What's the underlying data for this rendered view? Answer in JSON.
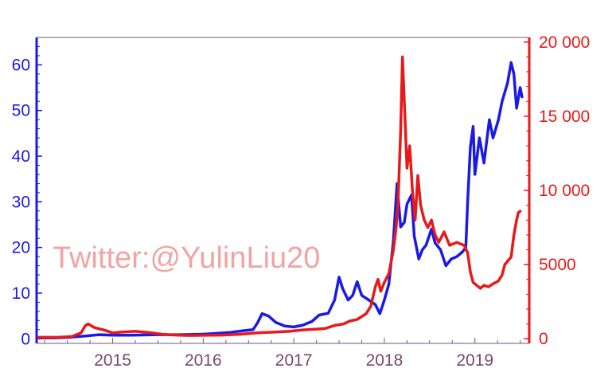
{
  "watermark": "Twitter:@YulinLiu20",
  "chart_data": {
    "type": "line",
    "x_ticks": [
      "2015",
      "2016",
      "2017",
      "2018",
      "2019"
    ],
    "x_range": [
      2014.16,
      2019.6
    ],
    "y_left": {
      "range": [
        -1,
        66
      ],
      "ticks": [
        0,
        10,
        20,
        30,
        40,
        50,
        60
      ],
      "tick_labels": [
        "0",
        "10",
        "20",
        "30",
        "40",
        "50",
        "60"
      ],
      "color": "#1a1ae6"
    },
    "y_right": {
      "range": [
        -310,
        20310
      ],
      "ticks": [
        0,
        5000,
        10000,
        15000,
        20000
      ],
      "tick_labels": [
        "0",
        "5000",
        "10 000",
        "15 000",
        "20 000"
      ],
      "color": "#e61a1a"
    },
    "series": [
      {
        "axis": "left",
        "color": "#1a1ae6",
        "points": [
          [
            2014.18,
            0.2
          ],
          [
            2014.35,
            0.2
          ],
          [
            2014.5,
            0.3
          ],
          [
            2014.7,
            0.6
          ],
          [
            2014.85,
            0.9
          ],
          [
            2015.0,
            0.8
          ],
          [
            2015.2,
            0.8
          ],
          [
            2015.5,
            0.9
          ],
          [
            2015.75,
            0.9
          ],
          [
            2016.0,
            1.0
          ],
          [
            2016.15,
            1.2
          ],
          [
            2016.3,
            1.4
          ],
          [
            2016.45,
            1.8
          ],
          [
            2016.55,
            2.0
          ],
          [
            2016.6,
            3.5
          ],
          [
            2016.65,
            5.5
          ],
          [
            2016.72,
            5.0
          ],
          [
            2016.8,
            3.6
          ],
          [
            2016.9,
            2.8
          ],
          [
            2017.0,
            2.6
          ],
          [
            2017.1,
            3.0
          ],
          [
            2017.2,
            3.8
          ],
          [
            2017.28,
            5.2
          ],
          [
            2017.38,
            5.6
          ],
          [
            2017.45,
            8.5
          ],
          [
            2017.5,
            13.5
          ],
          [
            2017.54,
            11.0
          ],
          [
            2017.6,
            8.5
          ],
          [
            2017.65,
            9.5
          ],
          [
            2017.7,
            12.5
          ],
          [
            2017.75,
            9.5
          ],
          [
            2017.82,
            8.6
          ],
          [
            2017.9,
            7.5
          ],
          [
            2017.95,
            5.5
          ],
          [
            2018.0,
            8.5
          ],
          [
            2018.05,
            12.0
          ],
          [
            2018.1,
            21.5
          ],
          [
            2018.14,
            34.0
          ],
          [
            2018.18,
            24.5
          ],
          [
            2018.22,
            25.5
          ],
          [
            2018.25,
            29.5
          ],
          [
            2018.3,
            31.5
          ],
          [
            2018.33,
            22.5
          ],
          [
            2018.38,
            17.5
          ],
          [
            2018.42,
            19.5
          ],
          [
            2018.46,
            20.5
          ],
          [
            2018.52,
            24.0
          ],
          [
            2018.56,
            21.0
          ],
          [
            2018.62,
            19.5
          ],
          [
            2018.68,
            16.0
          ],
          [
            2018.74,
            17.5
          ],
          [
            2018.8,
            18.0
          ],
          [
            2018.86,
            19.0
          ],
          [
            2018.9,
            20.0
          ],
          [
            2018.92,
            30.0
          ],
          [
            2018.95,
            42.0
          ],
          [
            2018.98,
            46.5
          ],
          [
            2019.0,
            36.0
          ],
          [
            2019.05,
            44.0
          ],
          [
            2019.1,
            38.5
          ],
          [
            2019.16,
            48.0
          ],
          [
            2019.2,
            44.0
          ],
          [
            2019.26,
            48.0
          ],
          [
            2019.3,
            52.0
          ],
          [
            2019.36,
            56.0
          ],
          [
            2019.4,
            60.5
          ],
          [
            2019.43,
            58.0
          ],
          [
            2019.46,
            50.5
          ],
          [
            2019.5,
            55.0
          ],
          [
            2019.52,
            53.0
          ]
        ]
      },
      {
        "axis": "right",
        "color": "#e61a1a",
        "points": [
          [
            2014.18,
            100
          ],
          [
            2014.4,
            100
          ],
          [
            2014.55,
            150
          ],
          [
            2014.65,
            400
          ],
          [
            2014.7,
            900
          ],
          [
            2014.73,
            1000
          ],
          [
            2014.8,
            750
          ],
          [
            2014.9,
            600
          ],
          [
            2015.0,
            400
          ],
          [
            2015.1,
            450
          ],
          [
            2015.25,
            500
          ],
          [
            2015.4,
            420
          ],
          [
            2015.55,
            300
          ],
          [
            2015.7,
            250
          ],
          [
            2015.85,
            220
          ],
          [
            2016.0,
            230
          ],
          [
            2016.2,
            250
          ],
          [
            2016.4,
            300
          ],
          [
            2016.6,
            400
          ],
          [
            2016.8,
            450
          ],
          [
            2016.95,
            500
          ],
          [
            2017.1,
            600
          ],
          [
            2017.25,
            650
          ],
          [
            2017.35,
            700
          ],
          [
            2017.45,
            900
          ],
          [
            2017.55,
            1000
          ],
          [
            2017.62,
            1200
          ],
          [
            2017.7,
            1300
          ],
          [
            2017.8,
            1700
          ],
          [
            2017.85,
            2200
          ],
          [
            2017.9,
            3500
          ],
          [
            2017.93,
            4000
          ],
          [
            2017.96,
            3200
          ],
          [
            2018.0,
            3800
          ],
          [
            2018.05,
            4400
          ],
          [
            2018.1,
            6000
          ],
          [
            2018.13,
            7500
          ],
          [
            2018.15,
            9000
          ],
          [
            2018.18,
            14000
          ],
          [
            2018.2,
            19000
          ],
          [
            2018.22,
            16000
          ],
          [
            2018.25,
            11500
          ],
          [
            2018.28,
            13000
          ],
          [
            2018.31,
            10000
          ],
          [
            2018.34,
            8000
          ],
          [
            2018.37,
            11000
          ],
          [
            2018.4,
            9000
          ],
          [
            2018.44,
            8000
          ],
          [
            2018.48,
            7500
          ],
          [
            2018.52,
            8000
          ],
          [
            2018.56,
            7000
          ],
          [
            2018.6,
            6500
          ],
          [
            2018.66,
            7200
          ],
          [
            2018.72,
            6300
          ],
          [
            2018.8,
            6500
          ],
          [
            2018.88,
            6300
          ],
          [
            2018.92,
            5800
          ],
          [
            2018.95,
            4500
          ],
          [
            2018.98,
            3800
          ],
          [
            2019.02,
            3600
          ],
          [
            2019.06,
            3400
          ],
          [
            2019.1,
            3600
          ],
          [
            2019.15,
            3500
          ],
          [
            2019.2,
            3700
          ],
          [
            2019.26,
            3900
          ],
          [
            2019.3,
            4300
          ],
          [
            2019.33,
            5000
          ],
          [
            2019.37,
            5300
          ],
          [
            2019.4,
            5500
          ],
          [
            2019.43,
            7000
          ],
          [
            2019.46,
            8000
          ],
          [
            2019.48,
            8500
          ],
          [
            2019.5,
            8600
          ]
        ]
      }
    ]
  }
}
